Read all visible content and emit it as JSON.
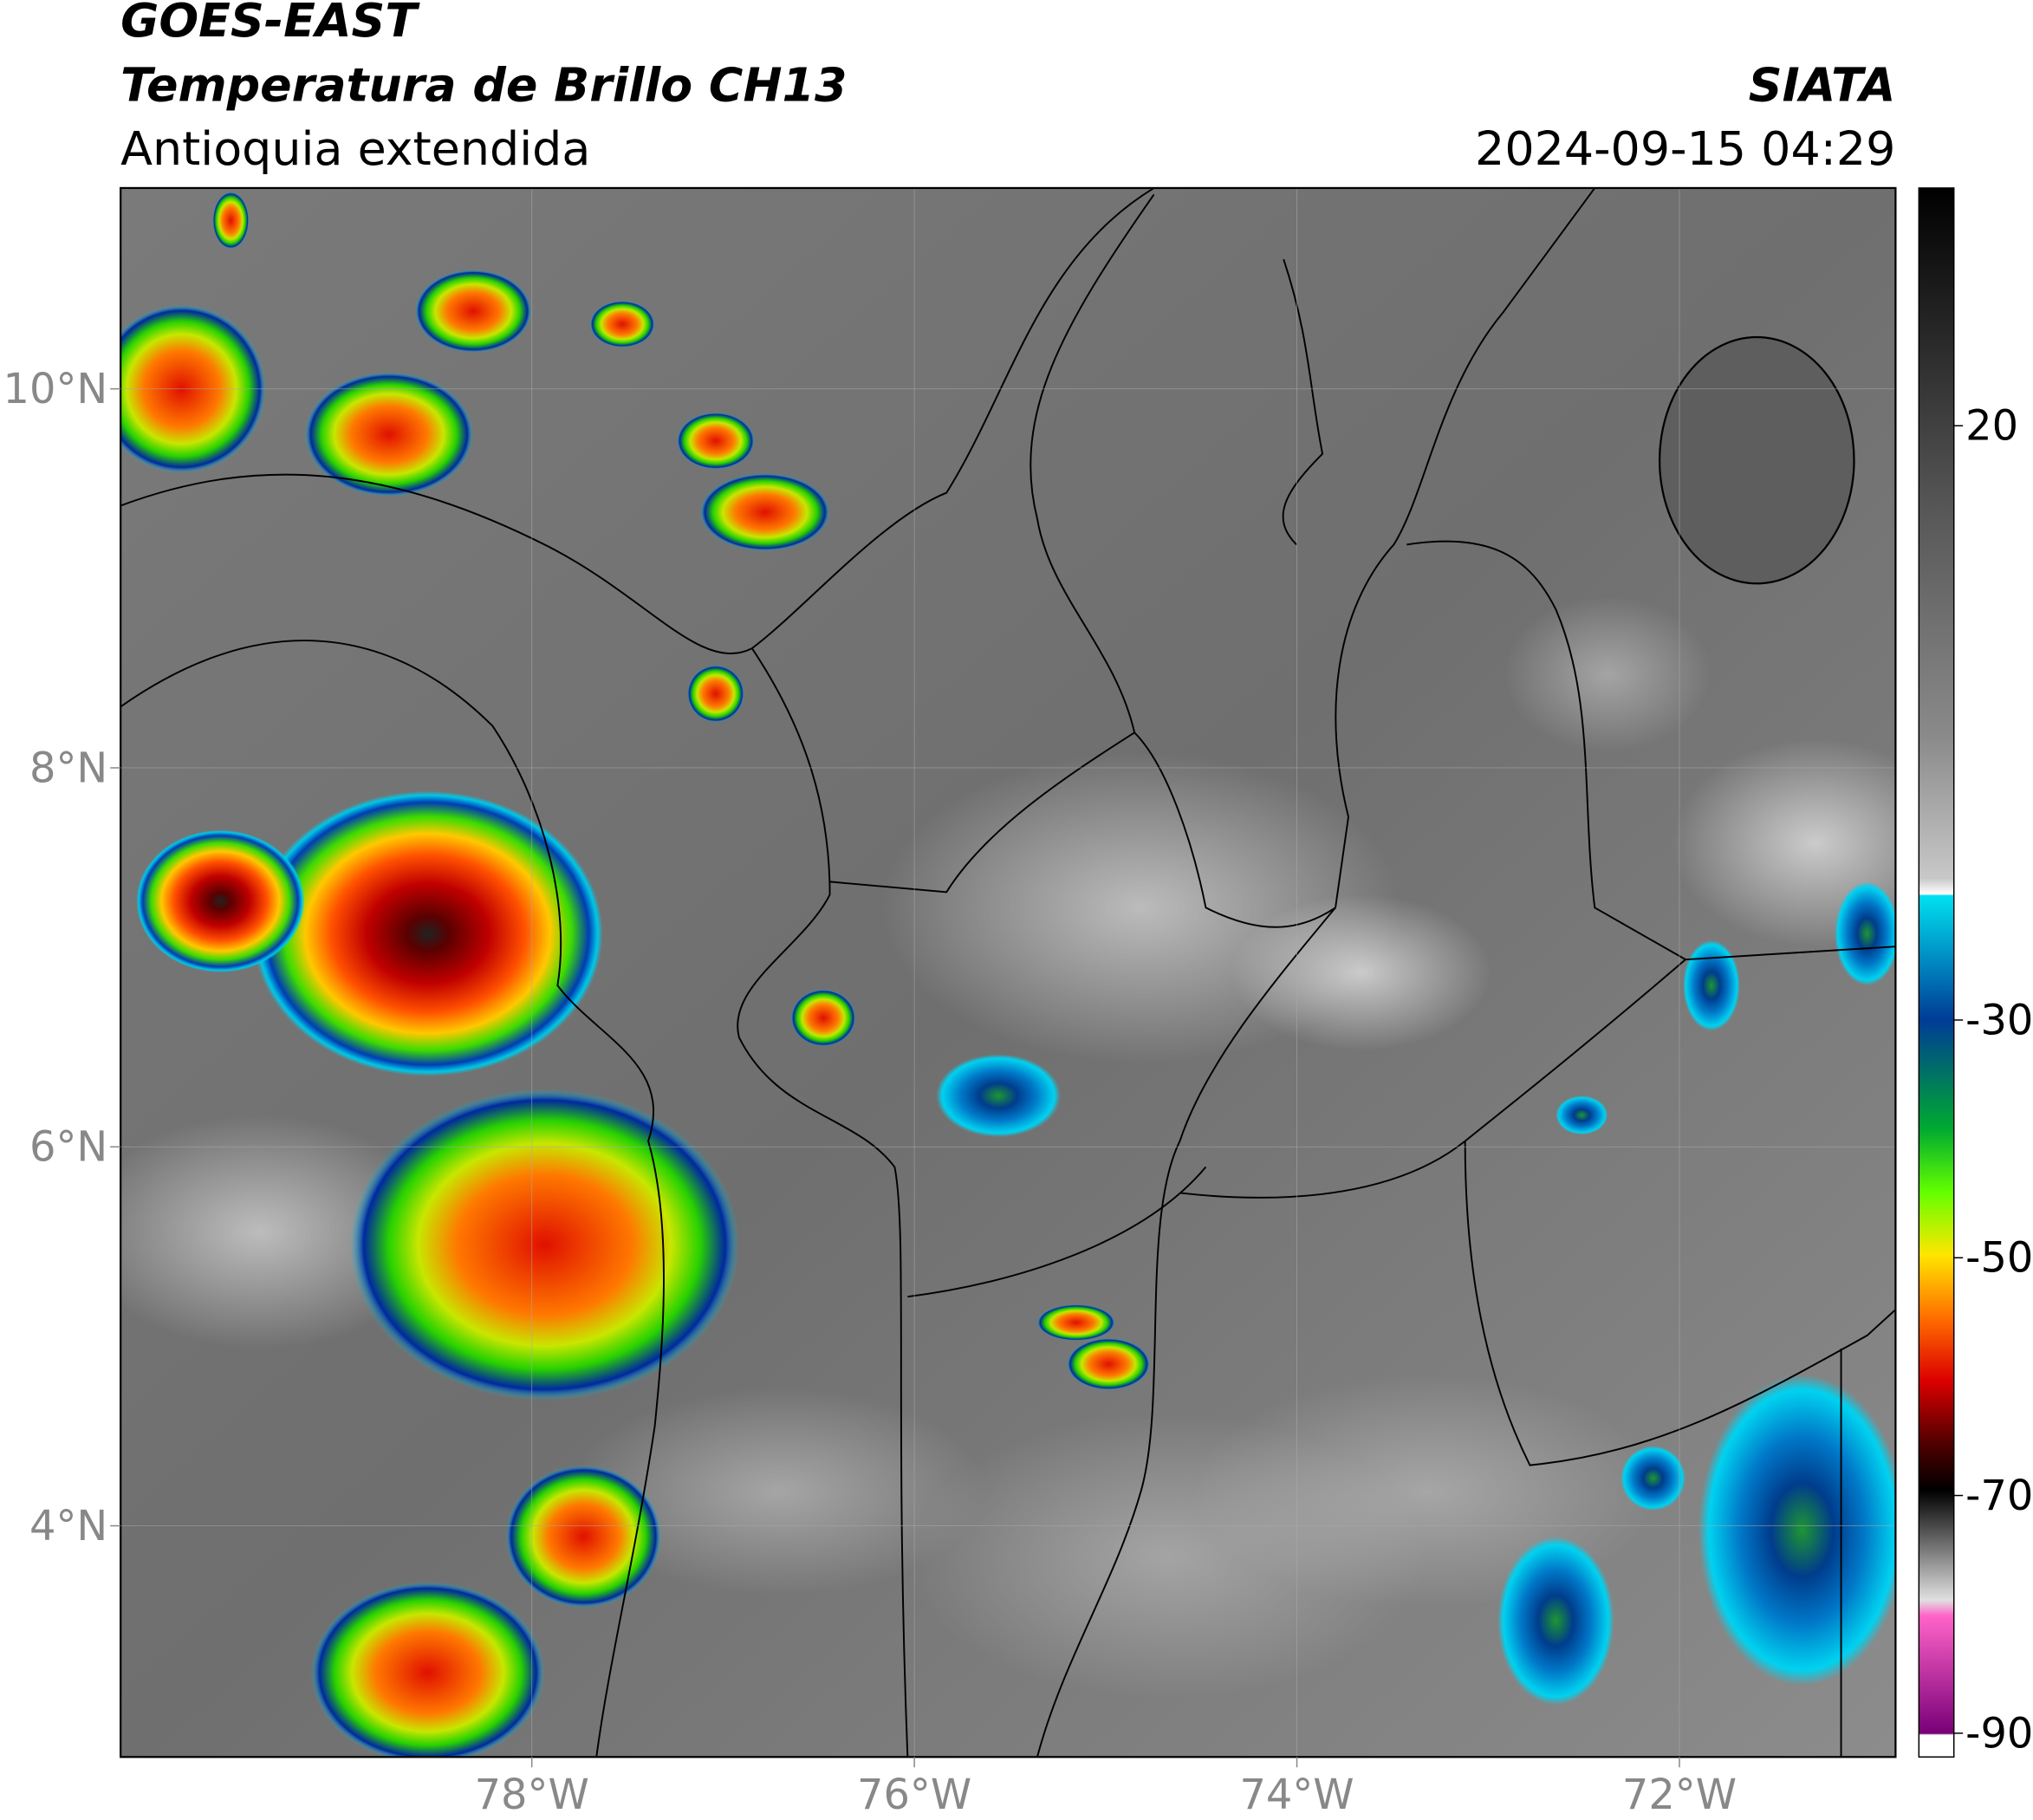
{
  "header": {
    "satellite": "GOES-EAST",
    "product": "Temperatura de Brillo CH13",
    "region": "Antioquia extendida",
    "agency": "SIATA",
    "datetime": "2024-09-15 04:29"
  },
  "map": {
    "lon_lim": [
      -80.15,
      -70.87
    ],
    "lat_lim": [
      2.78,
      11.06
    ],
    "lon_ticks": [
      {
        "value": -78,
        "label": "78°W"
      },
      {
        "value": -76,
        "label": "76°W"
      },
      {
        "value": -74,
        "label": "74°W"
      },
      {
        "value": -72,
        "label": "72°W"
      }
    ],
    "lat_ticks": [
      {
        "value": 10,
        "label": "10°N"
      },
      {
        "value": 8,
        "label": "8°N"
      },
      {
        "value": 6,
        "label": "6°N"
      },
      {
        "value": 4,
        "label": "4°N"
      }
    ]
  },
  "colorbar": {
    "lim": [
      -92,
      40
    ],
    "ticks": [
      20,
      -30,
      -50,
      -70,
      -90
    ]
  }
}
